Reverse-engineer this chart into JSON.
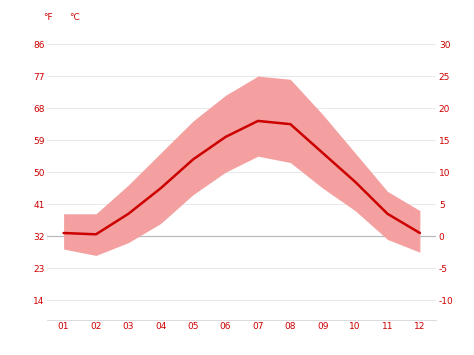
{
  "months": [
    1,
    2,
    3,
    4,
    5,
    6,
    7,
    8,
    9,
    10,
    11,
    12
  ],
  "month_labels": [
    "01",
    "02",
    "03",
    "04",
    "05",
    "06",
    "07",
    "08",
    "09",
    "10",
    "11",
    "12"
  ],
  "avg_temp_c": [
    0.5,
    0.3,
    3.5,
    7.5,
    12.0,
    15.5,
    18.0,
    17.5,
    13.0,
    8.5,
    3.5,
    0.5
  ],
  "max_temp_c": [
    3.5,
    3.5,
    8.0,
    13.0,
    18.0,
    22.0,
    25.0,
    24.5,
    19.0,
    13.0,
    7.0,
    4.0
  ],
  "min_temp_c": [
    -2.0,
    -3.0,
    -1.0,
    2.0,
    6.5,
    10.0,
    12.5,
    11.5,
    7.5,
    4.0,
    -0.5,
    -2.5
  ],
  "line_color": "#cc0000",
  "band_color": "#f4a0a0",
  "band_alpha": 1.0,
  "yticks_c": [
    -10,
    -5,
    0,
    5,
    10,
    15,
    20,
    25,
    30
  ],
  "yticks_f": [
    14,
    23,
    32,
    41,
    50,
    59,
    68,
    77,
    86
  ],
  "ylim_c": [
    -13,
    33
  ],
  "ylabel_left": "°F",
  "ylabel_right": "°C",
  "zero_line_color": "#bbbbbb",
  "grid_color": "#e8e8e8",
  "tick_label_color": "#cc0000",
  "bg_color": "#ffffff",
  "figsize": [
    4.74,
    3.55
  ],
  "dpi": 100
}
